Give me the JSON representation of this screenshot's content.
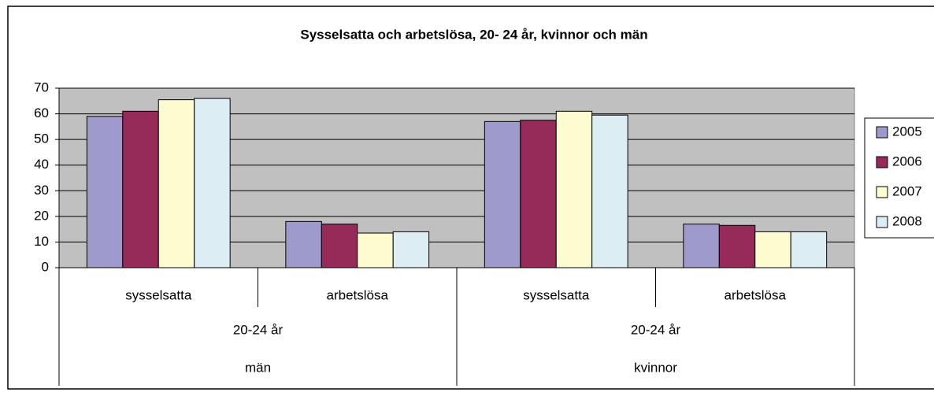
{
  "chart_data": {
    "type": "bar",
    "title": "Sysselsatta och arbetslösa, 20- 24 år, kvinnor och män",
    "categories": [
      "sysselsatta",
      "arbetslösa",
      "sysselsatta",
      "arbetslösa"
    ],
    "age_groups": [
      "20-24 år",
      "20-24 år"
    ],
    "gender_groups": [
      "män",
      "kvinnor"
    ],
    "series": [
      {
        "name": "2005",
        "color": "#9f9acc",
        "values": [
          59,
          18,
          57,
          17
        ]
      },
      {
        "name": "2006",
        "color": "#962a58",
        "values": [
          61,
          17,
          57.5,
          16.5
        ]
      },
      {
        "name": "2007",
        "color": "#fdfcd0",
        "values": [
          65.5,
          13.5,
          61,
          14
        ]
      },
      {
        "name": "2008",
        "color": "#dcedf3",
        "values": [
          66,
          14,
          59.5,
          14
        ]
      }
    ],
    "ylim": [
      0,
      70
    ],
    "yticks": [
      0,
      10,
      20,
      30,
      40,
      50,
      60,
      70
    ],
    "grid": true,
    "legend": "right"
  }
}
